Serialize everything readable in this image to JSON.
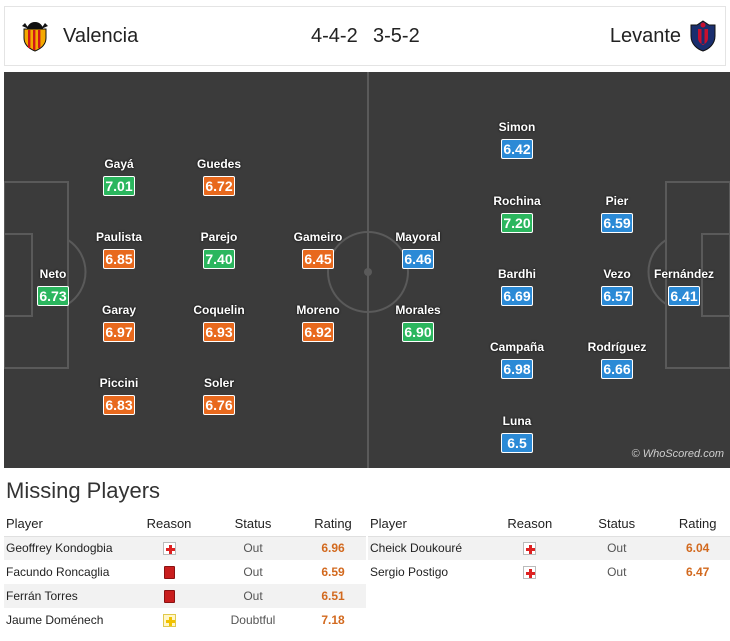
{
  "header": {
    "home_team": "Valencia",
    "away_team": "Levante",
    "home_formation": "4-4-2",
    "away_formation": "3-5-2",
    "home_crest_icon": "valencia-bat-crest-icon",
    "away_crest_icon": "levante-crest-icon"
  },
  "pitch": {
    "watermark": "© WhoScored.com",
    "home_players": [
      {
        "name": "Neto",
        "rating": "6.73",
        "color": "green"
      },
      {
        "name": "Gayá",
        "rating": "7.01",
        "color": "green"
      },
      {
        "name": "Paulista",
        "rating": "6.85",
        "color": "orange"
      },
      {
        "name": "Garay",
        "rating": "6.97",
        "color": "orange"
      },
      {
        "name": "Piccini",
        "rating": "6.83",
        "color": "orange"
      },
      {
        "name": "Guedes",
        "rating": "6.72",
        "color": "orange"
      },
      {
        "name": "Parejo",
        "rating": "7.40",
        "color": "green"
      },
      {
        "name": "Coquelin",
        "rating": "6.93",
        "color": "orange"
      },
      {
        "name": "Soler",
        "rating": "6.76",
        "color": "orange"
      },
      {
        "name": "Gameiro",
        "rating": "6.45",
        "color": "orange"
      },
      {
        "name": "Moreno",
        "rating": "6.92",
        "color": "orange"
      }
    ],
    "away_players": [
      {
        "name": "Mayoral",
        "rating": "6.46",
        "color": "blue"
      },
      {
        "name": "Morales",
        "rating": "6.90",
        "color": "green"
      },
      {
        "name": "Simon",
        "rating": "6.42",
        "color": "blue"
      },
      {
        "name": "Rochina",
        "rating": "7.20",
        "color": "green"
      },
      {
        "name": "Bardhi",
        "rating": "6.69",
        "color": "blue"
      },
      {
        "name": "Campaña",
        "rating": "6.98",
        "color": "blue"
      },
      {
        "name": "Luna",
        "rating": "6.5",
        "color": "blue"
      },
      {
        "name": "Pier",
        "rating": "6.59",
        "color": "blue"
      },
      {
        "name": "Vezo",
        "rating": "6.57",
        "color": "blue"
      },
      {
        "name": "Rodríguez",
        "rating": "6.66",
        "color": "blue"
      },
      {
        "name": "Fernández",
        "rating": "6.41",
        "color": "blue"
      }
    ],
    "colors": {
      "green": "#2bb65e",
      "orange": "#e8691d",
      "blue": "#2b8ad6",
      "pitch": "#3b3b3b"
    }
  },
  "missing": {
    "title": "Missing Players",
    "columns": {
      "player": "Player",
      "reason": "Reason",
      "status": "Status",
      "rating": "Rating"
    },
    "home": [
      {
        "player": "Geoffrey Kondogbia",
        "reason": "injury",
        "status": "Out",
        "rating": "6.96"
      },
      {
        "player": "Facundo Roncaglia",
        "reason": "red-card",
        "status": "Out",
        "rating": "6.59"
      },
      {
        "player": "Ferrán Torres",
        "reason": "red-card",
        "status": "Out",
        "rating": "6.51"
      },
      {
        "player": "Jaume Doménech",
        "reason": "doubtful",
        "status": "Doubtful",
        "rating": "7.18"
      }
    ],
    "away": [
      {
        "player": "Cheick Doukouré",
        "reason": "injury",
        "status": "Out",
        "rating": "6.04"
      },
      {
        "player": "Sergio Postigo",
        "reason": "injury",
        "status": "Out",
        "rating": "6.47"
      }
    ]
  }
}
